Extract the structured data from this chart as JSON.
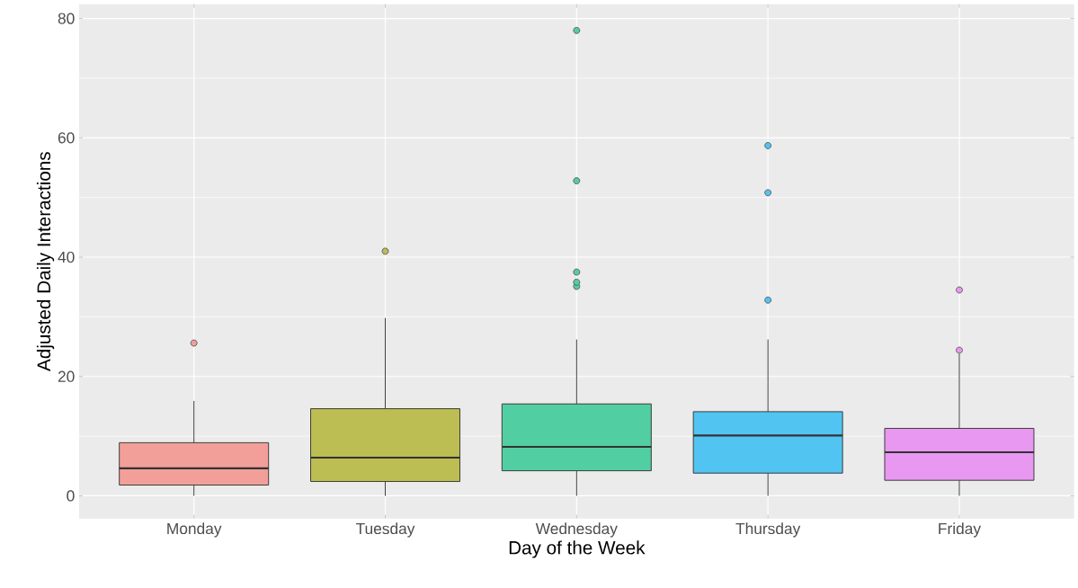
{
  "chart_data": {
    "type": "box",
    "xlabel": "Day of the Week",
    "ylabel": "Adjusted Daily Interactions",
    "categories": [
      "Monday",
      "Tuesday",
      "Wednesday",
      "Thursday",
      "Friday"
    ],
    "colors": [
      "#f39f99",
      "#bcbd52",
      "#52cea3",
      "#52c4f2",
      "#e898f0"
    ],
    "boxes": [
      {
        "low": 0,
        "q1": 1.8,
        "median": 4.6,
        "q3": 8.9,
        "high": 15.9,
        "outliers": [
          25.6
        ]
      },
      {
        "low": 0,
        "q1": 2.4,
        "median": 6.4,
        "q3": 14.6,
        "high": 29.8,
        "outliers": [
          41.0
        ]
      },
      {
        "low": 0,
        "q1": 4.2,
        "median": 8.2,
        "q3": 15.4,
        "high": 26.2,
        "outliers": [
          35.1,
          35.8,
          37.5,
          52.8,
          78.0
        ]
      },
      {
        "low": 0,
        "q1": 3.8,
        "median": 10.1,
        "q3": 14.1,
        "high": 26.2,
        "outliers": [
          32.8,
          50.8,
          58.7
        ]
      },
      {
        "low": 0,
        "q1": 2.6,
        "median": 7.3,
        "q3": 11.3,
        "high": 23.8,
        "outliers": [
          24.4,
          34.5
        ]
      }
    ],
    "ylim": [
      -3.8,
      82.4
    ],
    "yticks": [
      0,
      20,
      40,
      60,
      80
    ],
    "grid": true
  }
}
